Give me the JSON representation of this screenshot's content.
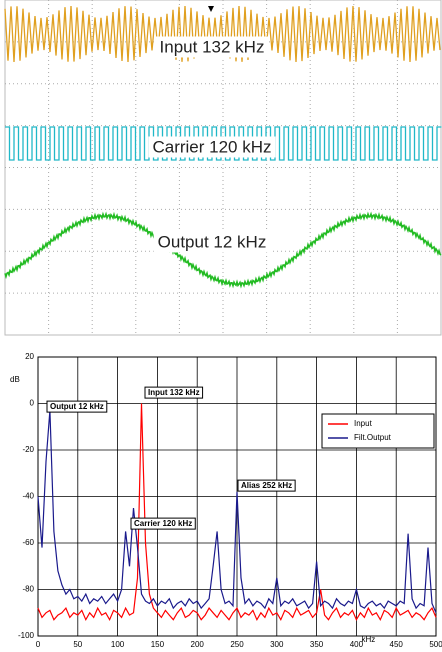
{
  "scope": {
    "labels": [
      "Input 132 kHz",
      "Carrier 120 kHz",
      "Output 12 kHz"
    ]
  },
  "chart_data": {
    "type": "line",
    "y_label": "dB",
    "x_label": "kHz",
    "xlim": [
      0,
      500
    ],
    "xticks": [
      0,
      50,
      100,
      150,
      200,
      250,
      300,
      350,
      400,
      450,
      500
    ],
    "ylim": [
      -100,
      20
    ],
    "yticks": [
      -100,
      -80,
      -60,
      -40,
      -20,
      0,
      20
    ],
    "grid": true,
    "legend": "upper right",
    "annotations": [
      "Input 132 kHz",
      "Output 12 kHz",
      "Alias 252 kHz",
      "Carrier 120 kHz"
    ],
    "x": [
      0,
      5,
      10,
      15,
      20,
      25,
      30,
      35,
      40,
      45,
      50,
      55,
      60,
      65,
      70,
      75,
      80,
      85,
      90,
      95,
      100,
      105,
      110,
      115,
      120,
      125,
      130,
      135,
      140,
      145,
      150,
      155,
      160,
      165,
      170,
      175,
      180,
      185,
      190,
      195,
      200,
      205,
      210,
      215,
      220,
      225,
      230,
      235,
      240,
      245,
      250,
      255,
      260,
      265,
      270,
      275,
      280,
      285,
      290,
      295,
      300,
      305,
      310,
      315,
      320,
      325,
      330,
      335,
      340,
      345,
      350,
      355,
      360,
      365,
      370,
      375,
      380,
      385,
      390,
      395,
      400,
      405,
      410,
      415,
      420,
      425,
      430,
      435,
      440,
      445,
      450,
      455,
      460,
      465,
      470,
      475,
      480,
      485,
      490,
      495,
      500
    ],
    "series": [
      {
        "name": "Input",
        "color": "#ff0000",
        "values": [
          -88,
          -92,
          -90,
          -89,
          -93,
          -91,
          -90,
          -88,
          -92,
          -90,
          -91,
          -89,
          -93,
          -90,
          -92,
          -88,
          -91,
          -90,
          -93,
          -89,
          -90,
          -92,
          -88,
          -91,
          -90,
          -75,
          0,
          -60,
          -82,
          -88,
          -90,
          -92,
          -89,
          -91,
          -93,
          -90,
          -88,
          -92,
          -91,
          -89,
          -90,
          -93,
          -91,
          -88,
          -90,
          -92,
          -89,
          -91,
          -93,
          -90,
          -88,
          -92,
          -90,
          -91,
          -89,
          -93,
          -90,
          -92,
          -88,
          -91,
          -90,
          -93,
          -89,
          -90,
          -92,
          -88,
          -91,
          -90,
          -89,
          -92,
          -90,
          -80,
          -91,
          -93,
          -90,
          -88,
          -92,
          -90,
          -91,
          -89,
          -93,
          -90,
          -92,
          -88,
          -91,
          -90,
          -93,
          -89,
          -90,
          -92,
          -88,
          -91,
          -90,
          -89,
          -92,
          -90,
          -91,
          -93,
          -90,
          -88,
          -92
        ]
      },
      {
        "name": "Filt.Output",
        "color": "#1a1a8c",
        "values": [
          -40,
          -62,
          -25,
          -3,
          -55,
          -72,
          -78,
          -82,
          -80,
          -84,
          -83,
          -85,
          -82,
          -86,
          -84,
          -85,
          -83,
          -86,
          -84,
          -82,
          -85,
          -80,
          -55,
          -70,
          -45,
          -62,
          -82,
          -85,
          -86,
          -84,
          -87,
          -85,
          -86,
          -84,
          -88,
          -86,
          -85,
          -87,
          -84,
          -86,
          -85,
          -88,
          -86,
          -84,
          -70,
          -55,
          -80,
          -86,
          -85,
          -87,
          -38,
          -75,
          -86,
          -84,
          -87,
          -85,
          -86,
          -88,
          -84,
          -86,
          -75,
          -87,
          -85,
          -86,
          -84,
          -87,
          -86,
          -85,
          -88,
          -86,
          -68,
          -87,
          -85,
          -86,
          -88,
          -84,
          -86,
          -87,
          -85,
          -86,
          -80,
          -87,
          -88,
          -86,
          -85,
          -87,
          -86,
          -88,
          -85,
          -86,
          -87,
          -85,
          -86,
          -56,
          -84,
          -88,
          -86,
          -87,
          -62,
          -86,
          -90
        ]
      }
    ]
  }
}
